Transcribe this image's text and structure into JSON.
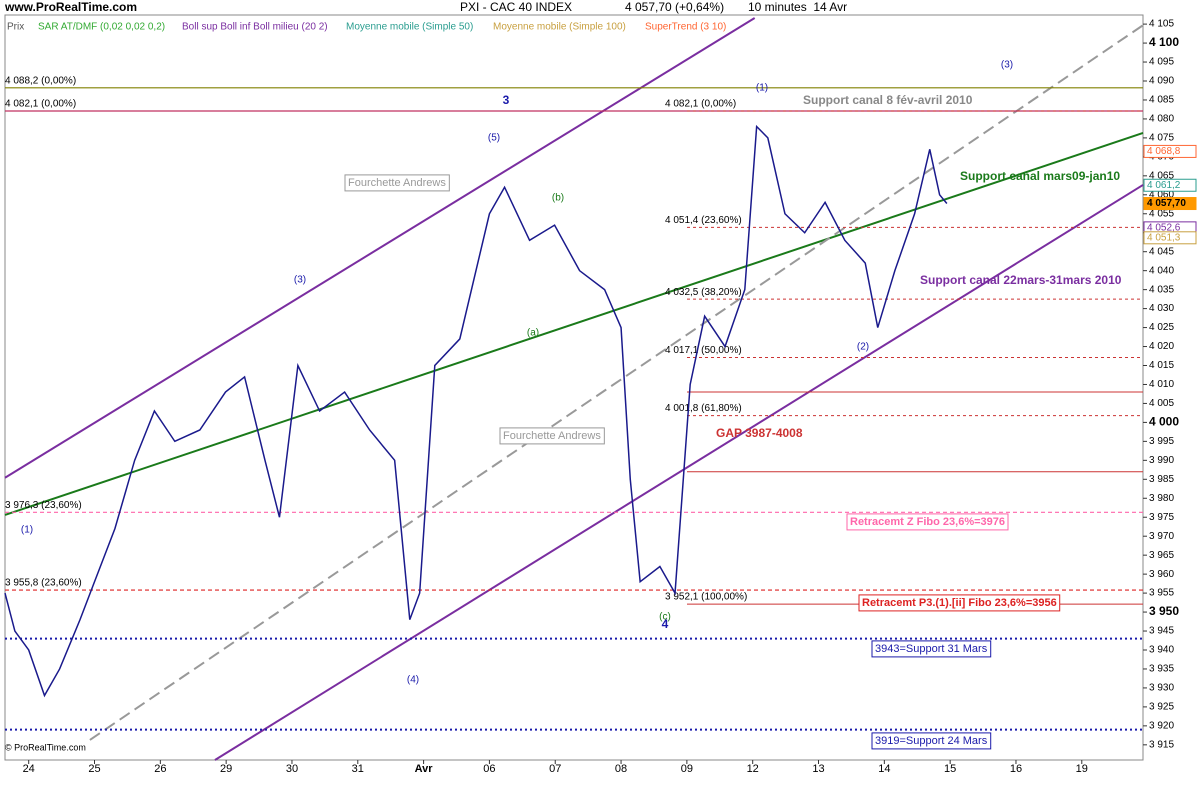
{
  "chart_data": {
    "type": "line",
    "header": {
      "site": "www.ProRealTime.com",
      "title": "PXI - CAC 40 INDEX",
      "last": "4 057,70 (+0,64%)",
      "period": "10 minutes  14 Avr",
      "footer": "© ProRealTime.com"
    },
    "indicators_legend": [
      {
        "name": "SAR AT/DMF (0,02 0,02 0,2)",
        "color": "#33aa33"
      },
      {
        "name": "Boll sup Boll inf Boll milieu (20 2)",
        "color": "#7a2ea0"
      },
      {
        "name": "Moyenne mobile (Simple 50)",
        "color": "#2a9d8f"
      },
      {
        "name": "Moyenne mobile (Simple 100)",
        "color": "#c8a040"
      },
      {
        "name": "SuperTrend (3 10)",
        "color": "#ff6633"
      }
    ],
    "x": [
      -0.36,
      -0.21,
      0,
      0.24,
      0.47,
      0.78,
      1.0,
      1.31,
      1.61,
      1.91,
      2.22,
      2.6,
      2.99,
      3.28,
      3.59,
      3.81,
      4.09,
      4.42,
      4.8,
      5.18,
      5.56,
      5.79,
      5.94,
      6.17,
      6.55,
      7.0,
      7.23,
      7.61,
      7.99,
      8.37,
      8.75,
      9.0,
      9.14,
      9.29,
      9.59,
      9.82,
      10.05,
      10.27,
      10.58,
      10.88,
      11.06,
      11.23,
      11.49,
      11.79,
      12.1,
      12.4,
      12.71,
      12.9,
      13.16,
      13.46,
      13.69,
      13.84,
      13.95
    ],
    "series": [
      {
        "name": "Prix",
        "color": "#1a1a8c",
        "values": [
          3955,
          3945,
          3940,
          3928,
          3935,
          3948,
          3958,
          3972,
          3990,
          4003,
          3995,
          3998,
          4008,
          4012,
          3990,
          3975,
          4015,
          4003,
          4008,
          3998,
          3990,
          3948,
          3955,
          4015,
          4022,
          4055,
          4062,
          4048,
          4052,
          4040,
          4035,
          4025,
          3985,
          3958,
          3962,
          3955,
          4010,
          4028,
          4020,
          4035,
          4078,
          4075,
          4055,
          4050,
          4058,
          4048,
          4042,
          4025,
          4040,
          4055,
          4072,
          4060,
          4057.7
        ]
      }
    ],
    "xlim": [
      -0.36,
      16.93
    ],
    "xticks": [
      {
        "value": 0,
        "label": "24"
      },
      {
        "value": 1,
        "label": "25"
      },
      {
        "value": 2,
        "label": "26"
      },
      {
        "value": 3,
        "label": "29"
      },
      {
        "value": 4,
        "label": "30"
      },
      {
        "value": 5,
        "label": "31"
      },
      {
        "value": 6,
        "label": "Avr"
      },
      {
        "value": 7,
        "label": "06"
      },
      {
        "value": 8,
        "label": "07"
      },
      {
        "value": 9,
        "label": "08"
      },
      {
        "value": 10,
        "label": "09"
      },
      {
        "value": 11,
        "label": "12"
      },
      {
        "value": 12,
        "label": "13"
      },
      {
        "value": 13,
        "label": "14"
      },
      {
        "value": 14,
        "label": "15"
      },
      {
        "value": 15,
        "label": "16"
      },
      {
        "value": 16,
        "label": "19"
      }
    ],
    "ylim": [
      3911,
      4107.4
    ],
    "yticks": [
      {
        "value": 4105,
        "label": "4 105"
      },
      {
        "value": 4100,
        "label": "4 100"
      },
      {
        "value": 4095,
        "label": "4 095"
      },
      {
        "value": 4090,
        "label": "4 090"
      },
      {
        "value": 4085,
        "label": "4 085"
      },
      {
        "value": 4080,
        "label": "4 080"
      },
      {
        "value": 4075,
        "label": "4 075"
      },
      {
        "value": 4070,
        "label": "4 070"
      },
      {
        "value": 4065,
        "label": "4 065"
      },
      {
        "value": 4060,
        "label": "4 060"
      },
      {
        "value": 4055,
        "label": "4 055"
      },
      {
        "value": 4050,
        "label": "4 050"
      },
      {
        "value": 4045,
        "label": "4 045"
      },
      {
        "value": 4040,
        "label": "4 040"
      },
      {
        "value": 4035,
        "label": "4 035"
      },
      {
        "value": 4030,
        "label": "4 030"
      },
      {
        "value": 4025,
        "label": "4 025"
      },
      {
        "value": 4020,
        "label": "4 020"
      },
      {
        "value": 4015,
        "label": "4 015"
      },
      {
        "value": 4010,
        "label": "4 010"
      },
      {
        "value": 4005,
        "label": "4 005"
      },
      {
        "value": 4000,
        "label": "4 000"
      },
      {
        "value": 3995,
        "label": "3 995"
      },
      {
        "value": 3990,
        "label": "3 990"
      },
      {
        "value": 3985,
        "label": "3 985"
      },
      {
        "value": 3980,
        "label": "3 980"
      },
      {
        "value": 3975,
        "label": "3 975"
      },
      {
        "value": 3970,
        "label": "3 970"
      },
      {
        "value": 3965,
        "label": "3 965"
      },
      {
        "value": 3960,
        "label": "3 960"
      },
      {
        "value": 3955,
        "label": "3 955"
      },
      {
        "value": 3950,
        "label": "3 950"
      },
      {
        "value": 3945,
        "label": "3 945"
      },
      {
        "value": 3940,
        "label": "3 940"
      },
      {
        "value": 3935,
        "label": "3 935"
      },
      {
        "value": 3930,
        "label": "3 930"
      },
      {
        "value": 3925,
        "label": "3 925"
      },
      {
        "value": 3920,
        "label": "3 920"
      },
      {
        "value": 3915,
        "label": "3 915"
      }
    ],
    "trendlines": [
      {
        "x": [
          -0.36,
          11.03
        ],
        "y": [
          3985.4,
          4106.6
        ],
        "color": "#7a2ea0"
      },
      {
        "x": [
          2.83,
          16.93
        ],
        "y": [
          3911,
          4062.6
        ],
        "color": "#7a2ea0"
      },
      {
        "x": [
          -0.36,
          16.93
        ],
        "y": [
          3975.6,
          4076.3
        ],
        "color": "#1a7a1a"
      },
      {
        "x": [
          0.93,
          16.93
        ],
        "y": [
          3916.3,
          4104.7
        ],
        "color": "#999999"
      }
    ],
    "levels_left": [
      {
        "value": 4088.2,
        "label": "4 088,2 (0,00%)",
        "color": "#808000"
      },
      {
        "value": 4082.1,
        "label": "4 082,1 (0,00%)",
        "color": "#c03060"
      },
      {
        "value": 3976.3,
        "label": "3 976,3 (23,60%)",
        "color": "#ff66aa"
      },
      {
        "value": 3955.8,
        "label": "3 955,8 (23,60%)",
        "color": "#dd2222"
      }
    ],
    "fibonacci": [
      {
        "value": 4082.1,
        "label": "4 082,1 (0,00%)"
      },
      {
        "value": 4051.4,
        "label": "4 051,4 (23,60%)"
      },
      {
        "value": 4032.5,
        "label": "4 032,5 (38,20%)"
      },
      {
        "value": 4017.1,
        "label": "4 017,1 (50,00%)"
      },
      {
        "value": 4001.8,
        "label": "4 001,8 (61,80%)"
      },
      {
        "value": 3952.1,
        "label": "3 952,1 (100,00%)"
      }
    ],
    "gap_lines": [
      4008,
      3987
    ],
    "support_lines": [
      3943,
      3919
    ],
    "price_tags": [
      {
        "value": 4068.8,
        "label": "4 068,8",
        "color": "#ff6633"
      },
      {
        "value": 4061.2,
        "label": "4 061,2",
        "color": "#2a9d8f"
      },
      {
        "value": 4057.7,
        "label": "4 057,70",
        "color": "#ff9900"
      },
      {
        "value": 4052.6,
        "label": "4 052,6",
        "color": "#7a2ea0"
      },
      {
        "value": 4051.3,
        "label": "4 051,3",
        "color": "#c8a040"
      }
    ],
    "annotations": [
      "Support canal 8 fév-avril 2010",
      "Support canal mars09-jan10",
      "Support canal 22mars-31mars 2010",
      "Fourchette Andrews",
      "Fourchette Andrews",
      "GAP 3987-4008",
      "Retracemt Z Fibo 23,6%=3976",
      "Retracemt P3.(1).[ii] Fibo 23,6%=3956",
      "3943=Support 31 Mars",
      "3919=Support 24 Mars"
    ],
    "wave_labels": [
      "(1)",
      "(1)",
      "(2)",
      "(3)",
      "(3)",
      "(4)",
      "(5)",
      "3",
      "4",
      "(a)",
      "(b)",
      "(c)"
    ]
  }
}
